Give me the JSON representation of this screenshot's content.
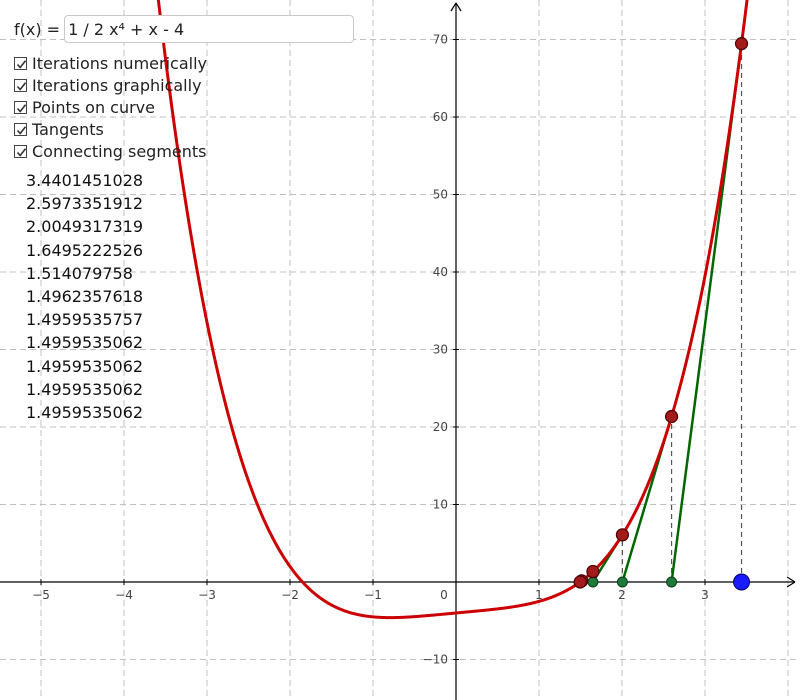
{
  "function": {
    "label": "f(x) =",
    "value": "1 / 2 x⁴ + x - 4"
  },
  "checkboxes": [
    {
      "label": "Iterations numerically",
      "checked": true
    },
    {
      "label": "Iterations graphically",
      "checked": true
    },
    {
      "label": "Points on curve",
      "checked": true
    },
    {
      "label": "Tangents",
      "checked": true
    },
    {
      "label": "Connecting segments",
      "checked": true
    }
  ],
  "iterations": [
    "3.4401451028",
    "2.5973351912",
    "2.0049317319",
    "1.6495222526",
    "1.514079758",
    "1.4962357618",
    "1.4959535757",
    "1.4959535062",
    "1.4959535062",
    "1.4959535062",
    "1.4959535062"
  ],
  "axes": {
    "x_ticks": [
      -5,
      -4,
      -3,
      -2,
      -1,
      0,
      1,
      2,
      3
    ],
    "x_tick_labels": [
      "−5",
      "−4",
      "−3",
      "−2",
      "−1",
      "0",
      "1",
      "2",
      "3"
    ],
    "y_ticks": [
      -10,
      10,
      20,
      30,
      40,
      50,
      60,
      70
    ],
    "y_tick_labels": [
      "−10",
      "10",
      "20",
      "30",
      "40",
      "50",
      "60",
      "70"
    ],
    "x_range": [
      -5.5,
      4.2
    ],
    "y_range": [
      -14.5,
      75
    ],
    "grid": true
  },
  "colors": {
    "curve": "#cc0000",
    "point_fill": "#a31a1a",
    "point_stroke": "#4a0000",
    "tangent": "#006600",
    "x_point": "#1f7a3a",
    "start_point": "#1a1aff",
    "grid": "#c0c0c0",
    "axis": "#000000",
    "dashed": "#555555"
  }
}
